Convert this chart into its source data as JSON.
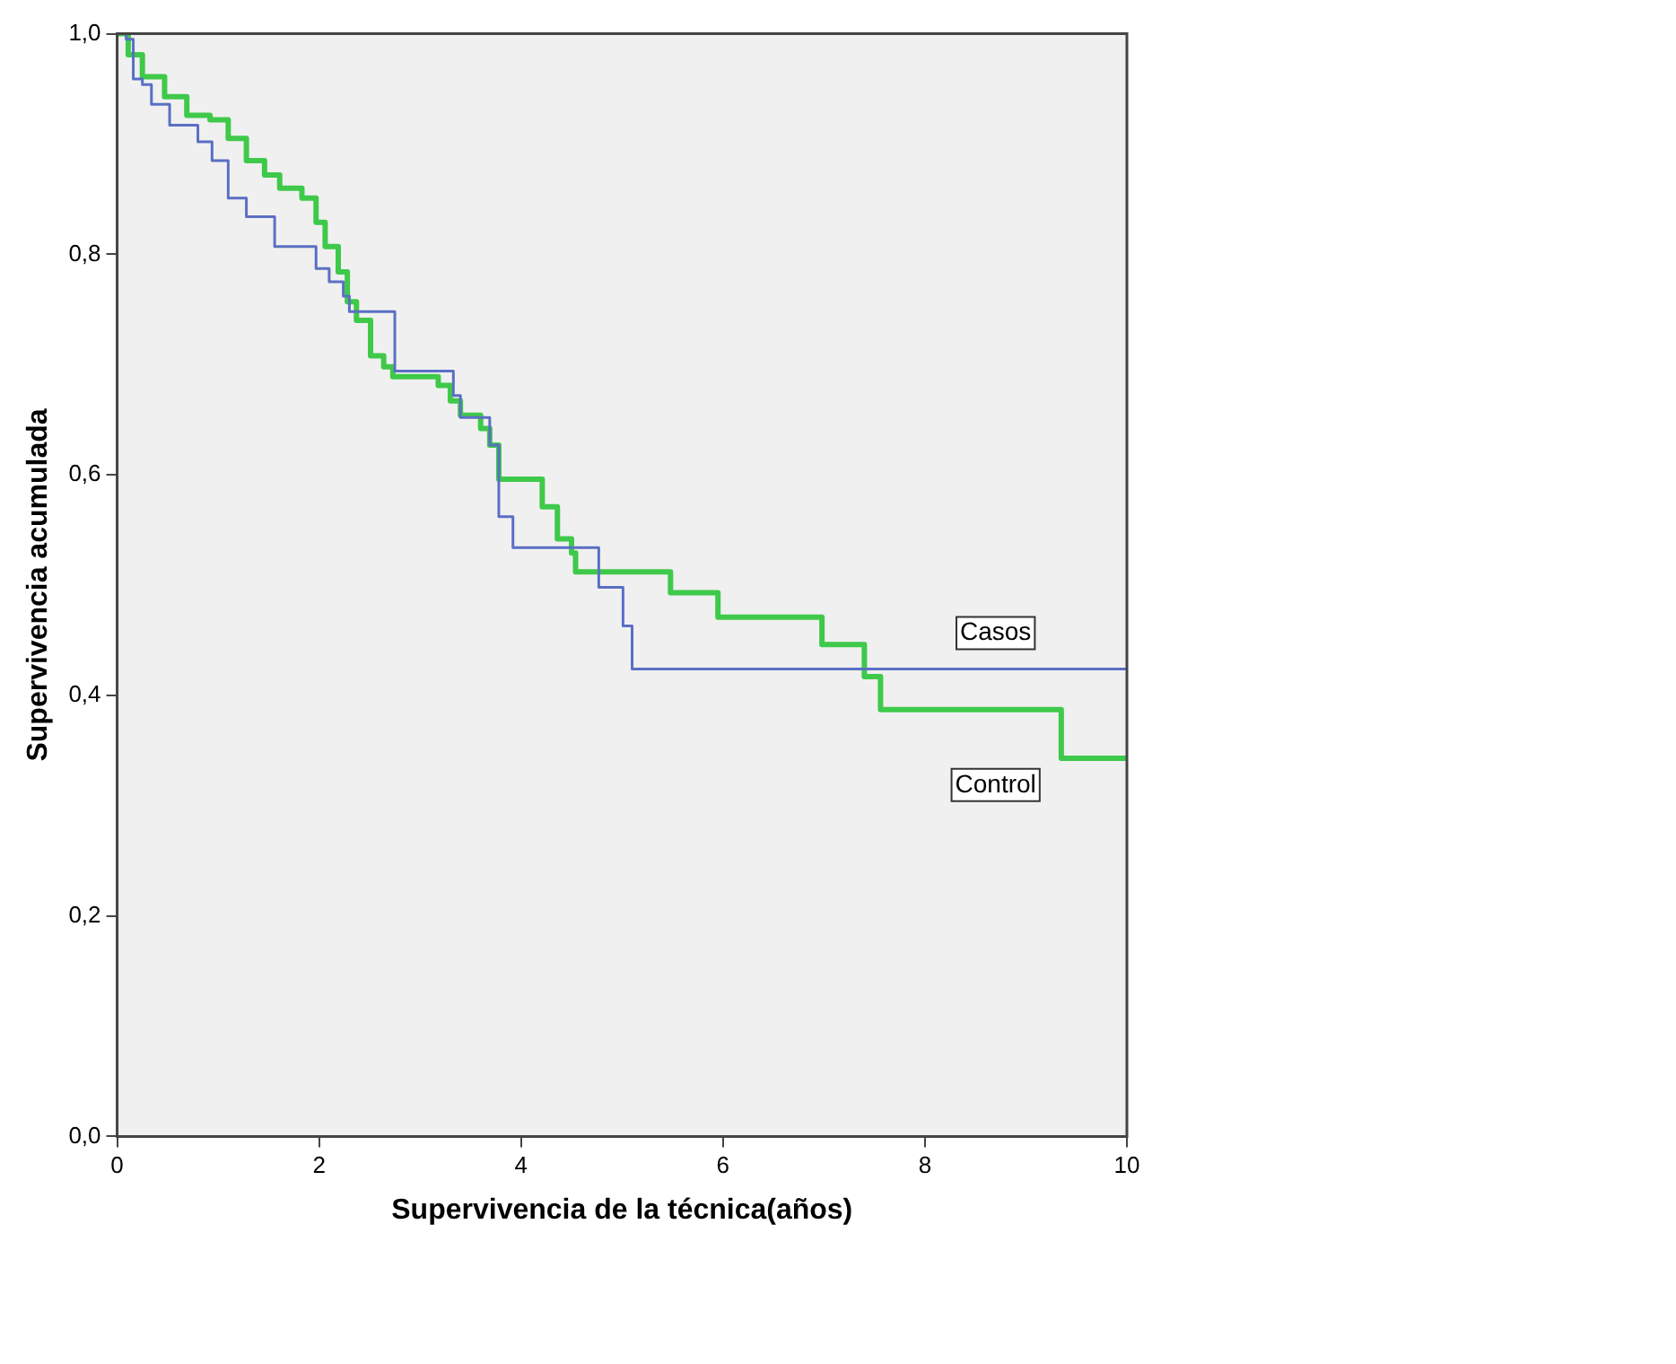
{
  "chart_data": {
    "type": "step",
    "xlabel": "Supervivencia de la técnica(años)",
    "ylabel": "Supervivencia acumulada",
    "xlim": [
      0,
      10
    ],
    "xticks": [
      0,
      2,
      4,
      6,
      8,
      10
    ],
    "ylim": [
      0,
      1
    ],
    "yticks": [
      {
        "value": 0,
        "label": "0,0"
      },
      {
        "value": 0.2,
        "label": "0,2"
      },
      {
        "value": 0.4,
        "label": "0,4"
      },
      {
        "value": 0.6,
        "label": "0,6"
      },
      {
        "value": 0.8,
        "label": "0,8"
      },
      {
        "value": 1,
        "label": "1,0"
      }
    ],
    "grid": false,
    "legend": false,
    "series": [
      {
        "name": "Casos",
        "color": "#5a6fc4",
        "x": [
          0,
          0.09,
          0.16,
          0.25,
          0.34,
          0.52,
          0.8,
          0.94,
          1.1,
          1.28,
          1.56,
          1.97,
          2.1,
          2.24,
          2.3,
          2.75,
          3.33,
          3.4,
          3.69,
          3.78,
          3.92,
          4.77,
          5.01,
          5.1,
          10
        ],
        "values": [
          1,
          0.995,
          0.959,
          0.954,
          0.936,
          0.917,
          0.902,
          0.885,
          0.851,
          0.834,
          0.807,
          0.787,
          0.775,
          0.762,
          0.748,
          0.694,
          0.672,
          0.652,
          0.627,
          0.562,
          0.534,
          0.498,
          0.463,
          0.424,
          0.424
        ]
      },
      {
        "name": "Control",
        "color": "#3fc94a",
        "x": [
          0,
          0.11,
          0.25,
          0.47,
          0.69,
          0.92,
          1.1,
          1.28,
          1.46,
          1.61,
          1.83,
          1.97,
          2.06,
          2.19,
          2.28,
          2.37,
          2.51,
          2.64,
          2.73,
          3.18,
          3.3,
          3.4,
          3.6,
          3.69,
          3.78,
          4.21,
          4.36,
          4.5,
          4.54,
          5.48,
          5.95,
          6.98,
          7.4,
          7.56,
          9.35,
          10
        ],
        "values": [
          1,
          0.981,
          0.961,
          0.943,
          0.926,
          0.922,
          0.905,
          0.885,
          0.872,
          0.86,
          0.851,
          0.829,
          0.807,
          0.784,
          0.757,
          0.74,
          0.708,
          0.698,
          0.689,
          0.681,
          0.667,
          0.654,
          0.642,
          0.627,
          0.596,
          0.571,
          0.542,
          0.529,
          0.512,
          0.493,
          0.471,
          0.446,
          0.417,
          0.387,
          0.343,
          0.343
        ]
      }
    ]
  }
}
